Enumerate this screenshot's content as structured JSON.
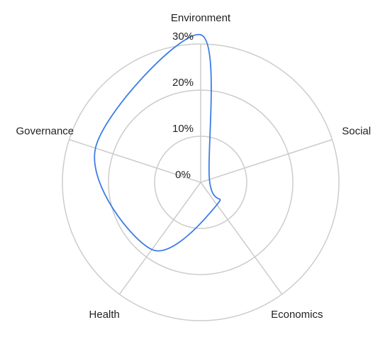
{
  "chart_data": {
    "type": "radar",
    "categories": [
      "Environment",
      "Social",
      "Economics",
      "Health",
      "Governance"
    ],
    "values": [
      32,
      2,
      6,
      18,
      24
    ],
    "color": "#3b7de8",
    "ylim": [
      0,
      30
    ],
    "yticks": [
      {
        "value": 0,
        "label": "0%"
      },
      {
        "value": 10,
        "label": "10%"
      },
      {
        "value": 20,
        "label": "20%"
      },
      {
        "value": 30,
        "label": "30%"
      }
    ],
    "grid": true
  }
}
